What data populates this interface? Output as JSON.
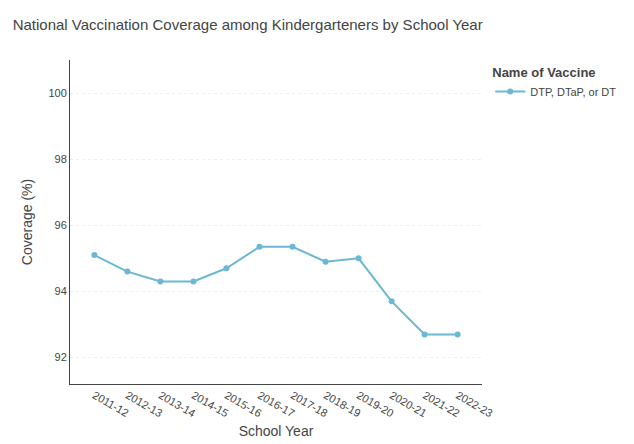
{
  "chart_data": {
    "type": "line",
    "title": "National Vaccination Coverage among Kindergarteners by School Year",
    "x_label": "School Year",
    "y_label": "Coverage (%)",
    "legend_title": "Name of Vaccine",
    "categories": [
      "2011-12",
      "2012-13",
      "2013-14",
      "2014-15",
      "2015-16",
      "2016-17",
      "2017-18",
      "2018-19",
      "2019-20",
      "2020-21",
      "2021-22",
      "2022-23"
    ],
    "series": [
      {
        "name": "DTP, DTaP, or DT",
        "color": "#6BB8D4",
        "values": [
          95.1,
          94.6,
          94.3,
          94.3,
          94.7,
          95.35,
          95.35,
          94.9,
          95.0,
          93.7,
          92.7,
          92.7
        ]
      }
    ],
    "ylim": [
      91.2,
      101.0
    ],
    "yticks": [
      92,
      94,
      96,
      98,
      100
    ],
    "grid": true,
    "legend": "upper right",
    "marker": "circle"
  }
}
